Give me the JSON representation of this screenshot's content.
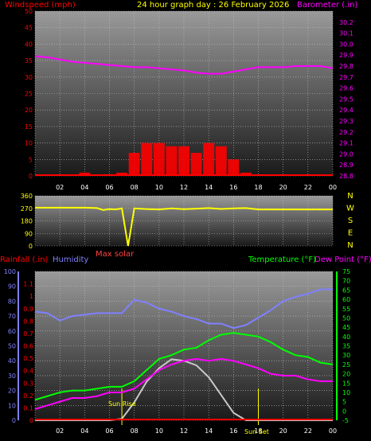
{
  "header": {
    "wind_label": "Windspeed (mph)",
    "title": "24 hour graph day : 26 February 2026",
    "baro_label": "Barometer (.in)",
    "rain_label": "Rainfall (.in)",
    "humidity_label": "Humidity",
    "temp_label": "Temperature (°F)",
    "dew_label": "Dew Point (°F)",
    "max_solar_label": "Max solar",
    "sunrise_label": "Sun Rise",
    "sunset_label": "Sun Set"
  },
  "colors": {
    "wind": "#ff0000",
    "baro": "#ff00ff",
    "dir": "#ffff00",
    "humidity": "#8080ff",
    "temp": "#00ff00",
    "dew": "#ff00ff",
    "solar": "#c8c8c8",
    "title": "#ffff00",
    "rain": "#ff0000"
  },
  "x_ticks": [
    "02",
    "04",
    "06",
    "08",
    "10",
    "12",
    "14",
    "16",
    "18",
    "20",
    "22",
    "00"
  ],
  "chart_data": [
    {
      "type": "area",
      "title": "",
      "xlabel": "",
      "x": [
        0,
        1,
        2,
        3,
        4,
        5,
        6,
        7,
        8,
        9,
        10,
        11,
        12,
        13,
        14,
        15,
        16,
        17,
        18,
        19,
        20,
        21,
        22,
        23,
        24
      ],
      "xlim": [
        0,
        24
      ],
      "series": [
        {
          "name": "Windspeed (mph)",
          "axis": "left",
          "ylim": [
            0,
            50
          ],
          "values": [
            0,
            0,
            0,
            0,
            1,
            0,
            0.5,
            1,
            7,
            10,
            10,
            9,
            9,
            7,
            10,
            9,
            5,
            1,
            0,
            0,
            0,
            0,
            0,
            0,
            0
          ]
        },
        {
          "name": "Barometer (.in)",
          "axis": "right",
          "ylim": [
            28.8,
            30.3
          ],
          "values": [
            29.89,
            29.88,
            29.86,
            29.84,
            29.83,
            29.82,
            29.81,
            29.8,
            29.79,
            29.79,
            29.78,
            29.77,
            29.76,
            29.74,
            29.73,
            29.73,
            29.75,
            29.77,
            29.79,
            29.79,
            29.79,
            29.8,
            29.8,
            29.8,
            29.78
          ]
        }
      ],
      "left_ticks": [
        0,
        5,
        10,
        15,
        20,
        25,
        30,
        35,
        40,
        45,
        50
      ],
      "right_ticks": [
        28.8,
        28.9,
        29.0,
        29.1,
        29.2,
        29.3,
        29.4,
        29.5,
        29.6,
        29.7,
        29.8,
        29.9,
        30.0,
        30.1,
        30.2
      ]
    },
    {
      "type": "line",
      "title": "",
      "x": [
        0,
        1,
        2,
        3,
        4,
        5,
        5.5,
        6,
        6.5,
        7,
        7.5,
        8,
        9,
        10,
        11,
        12,
        13,
        14,
        15,
        16,
        17,
        18,
        19,
        20,
        21,
        22,
        23,
        24
      ],
      "xlim": [
        0,
        24
      ],
      "series": [
        {
          "name": "Wind direction",
          "ylim": [
            0,
            360
          ],
          "values": [
            275,
            275,
            275,
            275,
            275,
            272,
            258,
            265,
            262,
            270,
            0,
            270,
            265,
            262,
            270,
            264,
            268,
            272,
            266,
            270,
            272,
            262,
            262,
            262,
            262,
            262,
            262,
            262
          ]
        }
      ],
      "left_ticks": [
        0,
        90,
        180,
        270,
        360
      ],
      "compass": [
        "N",
        "W",
        "S",
        "E",
        "N"
      ]
    },
    {
      "type": "line",
      "title": "",
      "x": [
        0,
        1,
        2,
        3,
        4,
        5,
        6,
        7,
        8,
        9,
        10,
        11,
        12,
        13,
        14,
        15,
        16,
        17,
        18,
        19,
        20,
        21,
        22,
        23,
        24
      ],
      "xlim": [
        0,
        24
      ],
      "series": [
        {
          "name": "Humidity",
          "axis": "left-humidity",
          "ylim": [
            0,
            100
          ],
          "values": [
            73,
            72,
            67,
            70,
            71,
            72,
            72,
            72,
            81,
            79,
            75,
            73,
            70,
            68,
            65,
            65,
            62,
            64,
            69,
            74,
            80,
            83,
            85,
            88,
            88
          ]
        },
        {
          "name": "Temperature (°F)",
          "axis": "right",
          "ylim": [
            -5,
            75
          ],
          "values": [
            6,
            8,
            10,
            11,
            11,
            12,
            13,
            13,
            16,
            22,
            28,
            30,
            33,
            34,
            38,
            41,
            42,
            41,
            40,
            37,
            33,
            30,
            29,
            26,
            25
          ]
        },
        {
          "name": "Dew Point (°F)",
          "axis": "right",
          "ylim": [
            -5,
            75
          ],
          "values": [
            1,
            3,
            5,
            7,
            7,
            8,
            10,
            10,
            12,
            17,
            22,
            25,
            27,
            28,
            27,
            28,
            27,
            25,
            23,
            20,
            19,
            19,
            17,
            16,
            16
          ]
        },
        {
          "name": "Max solar",
          "axis": "none",
          "ylim": [
            0,
            100
          ],
          "values": [
            0,
            0,
            0,
            0,
            0,
            0,
            0,
            1,
            12,
            26,
            35,
            41,
            40,
            37,
            29,
            17,
            5,
            0,
            0,
            0,
            0,
            0,
            0,
            0,
            0
          ]
        },
        {
          "name": "Rainfall (.in)",
          "axis": "left-rain",
          "ylim": [
            0,
            1.2
          ],
          "values": [
            0,
            0,
            0,
            0,
            0,
            0,
            0,
            0,
            0,
            0,
            0,
            0,
            0,
            0,
            0,
            0,
            0,
            0,
            0,
            0,
            0,
            0,
            0,
            0,
            0
          ]
        }
      ],
      "rain_ticks": [
        0,
        0.1,
        0.2,
        0.3,
        0.4,
        0.5,
        0.6,
        0.7,
        0.8,
        0.9,
        1,
        1.1
      ],
      "humidity_ticks": [
        0,
        10,
        20,
        30,
        40,
        50,
        60,
        70,
        80,
        90,
        100
      ],
      "right_ticks": [
        -5,
        0,
        5,
        10,
        15,
        20,
        25,
        30,
        35,
        40,
        45,
        50,
        55,
        60,
        65,
        70,
        75
      ],
      "sunrise_x": 7.0,
      "sunset_x": 18.0
    }
  ]
}
